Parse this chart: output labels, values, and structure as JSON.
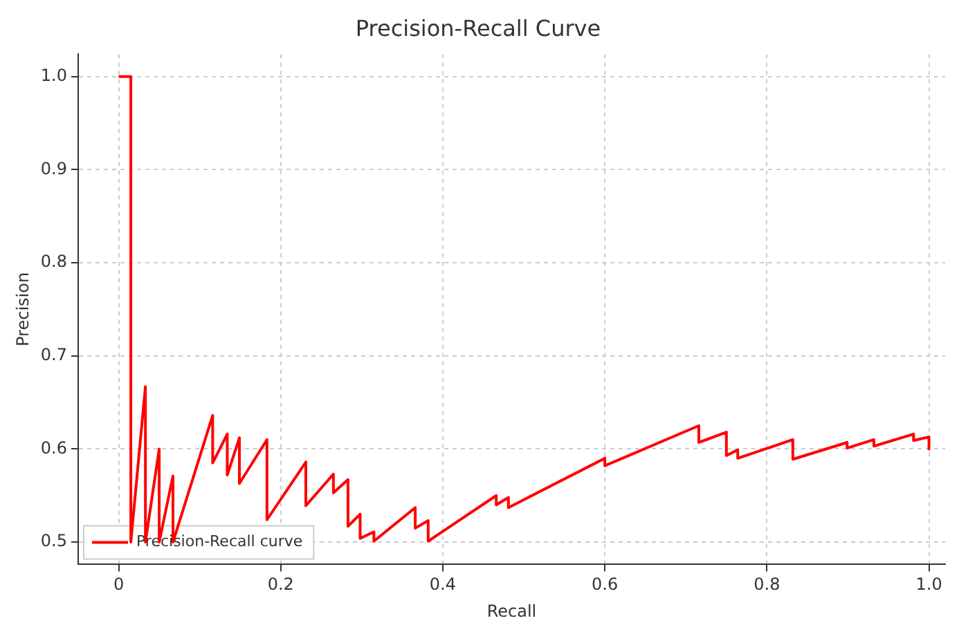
{
  "chart_data": {
    "type": "line",
    "title": "Precision-Recall Curve",
    "xlabel": "Recall",
    "ylabel": "Precision",
    "x": [
      0,
      0.015,
      0.015,
      0.033,
      0.033,
      0.05,
      0.05,
      0.067,
      0.067,
      0.116,
      0.116,
      0.134,
      0.134,
      0.149,
      0.149,
      0.183,
      0.183,
      0.231,
      0.231,
      0.265,
      0.265,
      0.283,
      0.283,
      0.298,
      0.298,
      0.315,
      0.315,
      0.366,
      0.366,
      0.382,
      0.382,
      0.466,
      0.466,
      0.481,
      0.481,
      0.6,
      0.6,
      0.716,
      0.716,
      0.75,
      0.75,
      0.764,
      0.764,
      0.832,
      0.832,
      0.899,
      0.899,
      0.932,
      0.932,
      0.981,
      0.981,
      1.0,
      1.0
    ],
    "series": [
      {
        "name": "Precision-Recall curve",
        "color": "#ff0000",
        "values": [
          1.0,
          1.0,
          0.5,
          0.667,
          0.5,
          0.6,
          0.5,
          0.571,
          0.5,
          0.636,
          0.585,
          0.616,
          0.572,
          0.612,
          0.563,
          0.61,
          0.524,
          0.586,
          0.539,
          0.573,
          0.553,
          0.567,
          0.517,
          0.53,
          0.504,
          0.511,
          0.501,
          0.537,
          0.515,
          0.523,
          0.501,
          0.55,
          0.54,
          0.548,
          0.537,
          0.59,
          0.582,
          0.625,
          0.607,
          0.618,
          0.593,
          0.599,
          0.59,
          0.61,
          0.589,
          0.607,
          0.601,
          0.61,
          0.603,
          0.616,
          0.609,
          0.613,
          0.6
        ]
      }
    ],
    "xlim": [
      -0.05,
      1.02
    ],
    "ylim": [
      0.476,
      1.024
    ],
    "xticks": [
      0.0,
      {
        "value": 0.2,
        "label": "0.2"
      },
      {
        "value": 0.4,
        "label": "0.4"
      },
      {
        "value": 0.6,
        "label": "0.6"
      },
      {
        "value": 0.8,
        "label": "0.8"
      },
      {
        "value": 1.0,
        "label": "1.0"
      }
    ],
    "yticks": [
      {
        "value": 0.5,
        "label": "0.5"
      },
      {
        "value": 0.6,
        "label": "0.6"
      },
      {
        "value": 0.7,
        "label": "0.7"
      },
      {
        "value": 0.8,
        "label": "0.8"
      },
      {
        "value": 0.9,
        "label": "0.9"
      },
      {
        "value": 1.0,
        "label": "1.0"
      }
    ],
    "grid": true,
    "legend": "bottom left",
    "marker": "none",
    "line_style": "solid"
  }
}
